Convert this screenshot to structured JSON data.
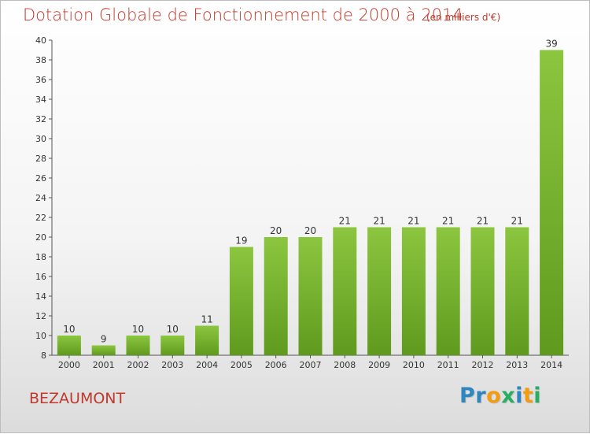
{
  "chart_data": {
    "type": "bar",
    "title": "Dotation Globale de Fonctionnement de 2000 à 2014",
    "subtitle": "(en milliers d'€)",
    "xlabel": "",
    "ylabel": "",
    "categories": [
      "2000",
      "2001",
      "2002",
      "2003",
      "2004",
      "2005",
      "2006",
      "2007",
      "2008",
      "2009",
      "2010",
      "2011",
      "2012",
      "2013",
      "2014"
    ],
    "values": [
      10,
      9,
      10,
      10,
      11,
      19,
      20,
      20,
      21,
      21,
      21,
      21,
      21,
      21,
      39
    ],
    "ylim": [
      8,
      40
    ],
    "yticks": [
      8,
      10,
      12,
      14,
      16,
      18,
      20,
      22,
      24,
      26,
      28,
      30,
      32,
      34,
      36,
      38,
      40
    ],
    "grid": false,
    "bar_color": "#8cc63f",
    "bar_color_dark": "#5f9a1e"
  },
  "location": "BEZAUMONT",
  "logo": {
    "text": "Proxiti",
    "letters": [
      {
        "ch": "P",
        "color": "#2e86c1"
      },
      {
        "ch": "r",
        "color": "#2e86c1"
      },
      {
        "ch": "o",
        "color": "#f39c12"
      },
      {
        "ch": "x",
        "color": "#27ae60"
      },
      {
        "ch": "i",
        "color": "#2e86c1"
      },
      {
        "ch": "t",
        "color": "#f39c12"
      },
      {
        "ch": "i",
        "color": "#27ae60"
      }
    ]
  },
  "colors": {
    "title": "#c0392b",
    "axis": "#555555"
  }
}
